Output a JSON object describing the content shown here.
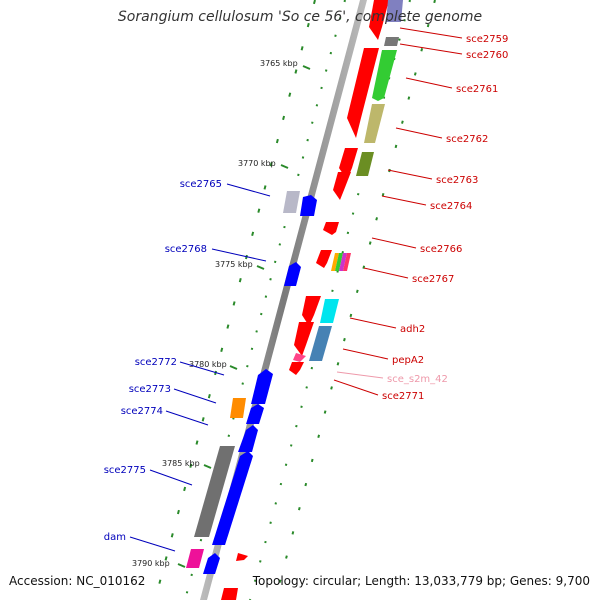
{
  "title": "Sorangium cellulosum 'So ce 56', complete genome",
  "footer": {
    "accession": "Accession: NC_010162",
    "topology": "Topology: circular; Length: 13,033,779 bp; Genes: 9,700"
  },
  "scale_labels": [
    "3765 kbp",
    "3770 kbp",
    "3775 kbp",
    "3780 kbp",
    "3785 kbp",
    "3790 kbp"
  ],
  "colors": {
    "forward_label": "#cc0000",
    "reverse_label": "#0000bb",
    "rna_label": "#ee99aa",
    "tick_green": "#2a8a2a",
    "backbone": "#8c8c8c"
  },
  "gene_labels": [
    {
      "text": "sce2759",
      "strand": "forward"
    },
    {
      "text": "sce2760",
      "strand": "forward"
    },
    {
      "text": "sce2761",
      "strand": "forward"
    },
    {
      "text": "sce2762",
      "strand": "forward"
    },
    {
      "text": "sce2763",
      "strand": "forward"
    },
    {
      "text": "sce2764",
      "strand": "forward"
    },
    {
      "text": "sce2765",
      "strand": "reverse"
    },
    {
      "text": "sce2766",
      "strand": "forward"
    },
    {
      "text": "sce2768",
      "strand": "reverse"
    },
    {
      "text": "sce2767",
      "strand": "forward"
    },
    {
      "text": "adh2",
      "strand": "forward"
    },
    {
      "text": "pepA2",
      "strand": "forward"
    },
    {
      "text": "sce2772",
      "strand": "reverse"
    },
    {
      "text": "sce_s2m_42",
      "strand": "rna"
    },
    {
      "text": "sce2773",
      "strand": "reverse"
    },
    {
      "text": "sce2771",
      "strand": "forward"
    },
    {
      "text": "sce2774",
      "strand": "reverse"
    },
    {
      "text": "sce2775",
      "strand": "reverse"
    },
    {
      "text": "dam",
      "strand": "reverse"
    }
  ]
}
